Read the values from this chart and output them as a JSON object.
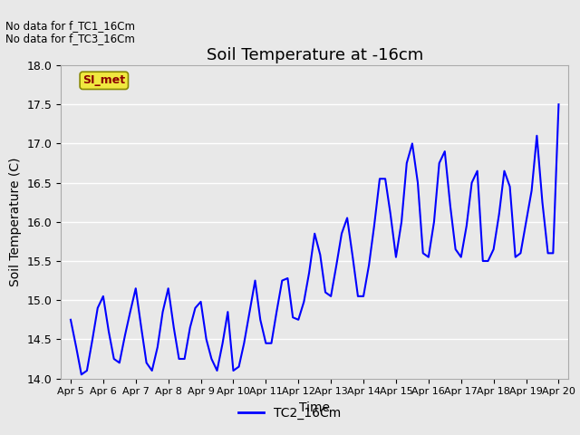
{
  "title": "Soil Temperature at -16cm",
  "xlabel": "Time",
  "ylabel": "Soil Temperature (C)",
  "ylim": [
    14.0,
    18.0
  ],
  "yticks": [
    14.0,
    14.5,
    15.0,
    15.5,
    16.0,
    16.5,
    17.0,
    17.5,
    18.0
  ],
  "line_color": "blue",
  "line_width": 1.5,
  "bg_color": "#e8e8e8",
  "grid_color": "white",
  "legend_label": "TC2_16Cm",
  "no_data_texts": [
    "No data for f_TC1_16Cm",
    "No data for f_TC3_16Cm"
  ],
  "si_met_label": "SI_met",
  "x_tick_labels": [
    "Apr 5",
    "Apr 6",
    "Apr 7",
    "Apr 8",
    "Apr 9",
    "Apr 10",
    "Apr 11",
    "Apr 12",
    "Apr 13",
    "Apr 14",
    "Apr 15",
    "Apr 16",
    "Apr 17",
    "Apr 18",
    "Apr 19",
    "Apr 20"
  ],
  "x_tick_positions": [
    0,
    1,
    2,
    3,
    4,
    5,
    6,
    7,
    8,
    9,
    10,
    11,
    12,
    13,
    14,
    15
  ],
  "data_x": [
    0.0,
    0.17,
    0.33,
    0.5,
    0.67,
    0.83,
    1.0,
    1.17,
    1.33,
    1.5,
    1.67,
    1.83,
    2.0,
    2.17,
    2.33,
    2.5,
    2.67,
    2.83,
    3.0,
    3.17,
    3.33,
    3.5,
    3.67,
    3.83,
    4.0,
    4.17,
    4.33,
    4.5,
    4.67,
    4.83,
    5.0,
    5.17,
    5.33,
    5.5,
    5.67,
    5.83,
    6.0,
    6.17,
    6.33,
    6.5,
    6.67,
    6.83,
    7.0,
    7.17,
    7.33,
    7.5,
    7.67,
    7.83,
    8.0,
    8.17,
    8.33,
    8.5,
    8.67,
    8.83,
    9.0,
    9.17,
    9.33,
    9.5,
    9.67,
    9.83,
    10.0,
    10.17,
    10.33,
    10.5,
    10.67,
    10.83,
    11.0,
    11.17,
    11.33,
    11.5,
    11.67,
    11.83,
    12.0,
    12.17,
    12.33,
    12.5,
    12.67,
    12.83,
    13.0,
    13.17,
    13.33,
    13.5,
    13.67,
    13.83,
    14.0,
    14.17,
    14.33,
    14.5,
    14.67,
    14.83,
    15.0
  ],
  "data_y": [
    14.75,
    14.4,
    14.05,
    14.1,
    14.5,
    14.9,
    15.05,
    14.6,
    14.25,
    14.2,
    14.55,
    14.85,
    15.15,
    14.65,
    14.2,
    14.1,
    14.4,
    14.85,
    15.15,
    14.65,
    14.25,
    14.25,
    14.65,
    14.9,
    14.98,
    14.5,
    14.25,
    14.1,
    14.45,
    14.85,
    14.1,
    14.15,
    14.45,
    14.85,
    15.25,
    14.75,
    14.45,
    14.45,
    14.85,
    15.25,
    15.28,
    14.78,
    14.75,
    14.98,
    15.35,
    15.85,
    15.58,
    15.1,
    15.05,
    15.45,
    15.85,
    16.05,
    15.55,
    15.05,
    15.05,
    15.45,
    15.95,
    16.55,
    16.55,
    16.1,
    15.55,
    16.0,
    16.75,
    17.0,
    16.5,
    15.6,
    15.55,
    16.0,
    16.75,
    16.9,
    16.2,
    15.65,
    15.55,
    15.95,
    16.5,
    16.65,
    15.5,
    15.5,
    15.65,
    16.1,
    16.65,
    16.45,
    15.55,
    15.6,
    16.0,
    16.4,
    17.1,
    16.25,
    15.6,
    15.6,
    17.5
  ]
}
